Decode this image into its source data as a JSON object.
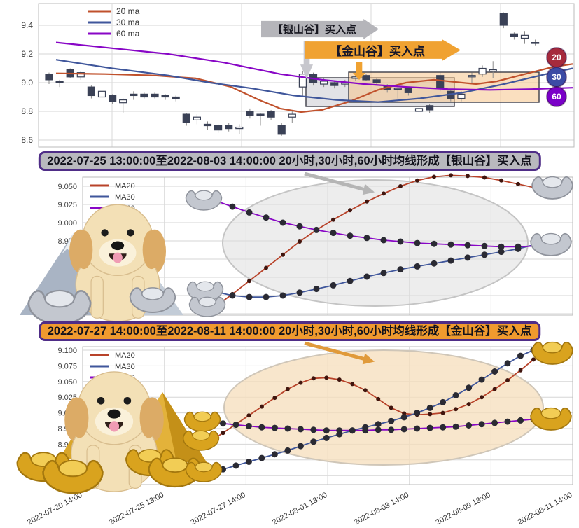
{
  "annotations": {
    "silver_buy_label": "【银山谷】买入点",
    "gold_buy_label": "【金山谷】买入点"
  },
  "titles": {
    "silver": "2022-07-25 13:00:00至2022-08-03 14:00:00 20小时,30小时,60小时均线形成【银山谷】买入点",
    "gold": "2022-07-27 14:00:00至2022-08-11 14:00:00 20小时,30小时,60小时均线形成【金山谷】买入点"
  },
  "colors": {
    "ma20": "#c0512c",
    "ma30": "#3f569b",
    "ma60": "#8806c6",
    "candle": "#3a4156",
    "silver_banner": "#b9b9be",
    "gold_banner": "#f09a2e",
    "banner_border": "#4f2d87"
  },
  "chart_data": [
    {
      "id": "kline",
      "type": "candlestick",
      "legend": [
        {
          "label": "20 ma",
          "color": "#c0512c"
        },
        {
          "label": "30 ma",
          "color": "#3f569b"
        },
        {
          "label": "60 ma",
          "color": "#8806c6"
        }
      ],
      "y_ticks": [
        9.4,
        9.2,
        9.0,
        8.8,
        8.6
      ],
      "badges": [
        {
          "label": "20",
          "color": "#a62a3c"
        },
        {
          "label": "30",
          "color": "#3c4ba5"
        },
        {
          "label": "60",
          "color": "#7a00c8"
        }
      ],
      "candles": [
        [
          9.06,
          9.02,
          8.99,
          9.07
        ],
        [
          9.01,
          9.0,
          8.97,
          9.02
        ],
        [
          9.09,
          9.04,
          9.03,
          9.1
        ],
        [
          9.04,
          9.07,
          9.02,
          9.08
        ],
        [
          8.97,
          8.91,
          8.89,
          8.98
        ],
        [
          8.9,
          8.94,
          8.88,
          8.96
        ],
        [
          8.91,
          8.87,
          8.85,
          8.92
        ],
        [
          8.86,
          8.88,
          8.79,
          8.89
        ],
        [
          8.92,
          8.91,
          8.88,
          8.94
        ],
        [
          8.92,
          8.9,
          8.89,
          8.93
        ],
        [
          8.92,
          8.9,
          8.89,
          8.93
        ],
        [
          8.91,
          8.9,
          8.88,
          8.92
        ],
        [
          8.9,
          8.89,
          8.87,
          8.91
        ],
        [
          8.78,
          8.72,
          8.7,
          8.79
        ],
        [
          8.74,
          8.76,
          8.71,
          8.78
        ],
        [
          8.71,
          8.7,
          8.67,
          8.73
        ],
        [
          8.7,
          8.67,
          8.65,
          8.71
        ],
        [
          8.7,
          8.68,
          8.66,
          8.72
        ],
        [
          8.68,
          8.69,
          8.64,
          8.71
        ],
        [
          8.8,
          8.77,
          8.75,
          8.82
        ],
        [
          8.78,
          8.77,
          8.7,
          8.79
        ],
        [
          8.8,
          8.76,
          8.74,
          8.81
        ],
        [
          8.7,
          8.64,
          8.63,
          8.72
        ],
        [
          8.76,
          8.78,
          8.72,
          8.8
        ],
        [
          8.97,
          9.06,
          8.9,
          9.08
        ],
        [
          9.06,
          9.0,
          8.98,
          9.07
        ],
        [
          8.99,
          9.01,
          8.97,
          9.03
        ],
        [
          9.0,
          8.98,
          8.96,
          9.01
        ],
        [
          8.99,
          9.0,
          8.97,
          9.02
        ],
        [
          9.03,
          9.04,
          9.01,
          9.06
        ],
        [
          9.05,
          9.02,
          9.01,
          9.06
        ],
        [
          9.02,
          9.0,
          8.98,
          9.03
        ],
        [
          8.98,
          8.95,
          8.93,
          8.99
        ],
        [
          8.96,
          8.96,
          8.89,
          8.97
        ],
        [
          8.96,
          8.93,
          8.91,
          8.97
        ],
        [
          8.8,
          8.82,
          8.78,
          8.84
        ],
        [
          8.84,
          8.81,
          8.79,
          8.85
        ],
        [
          9.05,
          8.96,
          8.94,
          9.07
        ],
        [
          8.94,
          8.89,
          8.87,
          8.95
        ],
        [
          8.89,
          8.92,
          8.87,
          8.94
        ],
        [
          9.04,
          9.05,
          9.0,
          9.07
        ],
        [
          9.06,
          9.1,
          9.04,
          9.12
        ],
        [
          9.08,
          9.09,
          9.03,
          9.15
        ],
        [
          9.48,
          9.4,
          9.38,
          9.49
        ],
        [
          9.34,
          9.32,
          9.3,
          9.35
        ],
        [
          9.31,
          9.33,
          9.27,
          9.36
        ],
        [
          9.28,
          9.28,
          9.26,
          9.3
        ]
      ],
      "ma_series": [
        {
          "name": "20 ma",
          "color": "#c0512c",
          "points": [
            [
              80,
              9.065
            ],
            [
              150,
              9.06
            ],
            [
              220,
              9.05
            ],
            [
              280,
              9.03
            ],
            [
              330,
              8.97
            ],
            [
              370,
              8.88
            ],
            [
              400,
              8.82
            ],
            [
              430,
              8.795
            ],
            [
              460,
              8.81
            ],
            [
              500,
              8.87
            ],
            [
              540,
              8.95
            ],
            [
              580,
              9.0
            ],
            [
              620,
              9.02
            ],
            [
              650,
              9.005
            ],
            [
              680,
              8.99
            ],
            [
              710,
              9.01
            ],
            [
              750,
              9.06
            ],
            [
              790,
              9.11
            ],
            [
              818,
              9.13
            ]
          ]
        },
        {
          "name": "30 ma",
          "color": "#3f569b",
          "points": [
            [
              80,
              9.16
            ],
            [
              160,
              9.1
            ],
            [
              240,
              9.05
            ],
            [
              300,
              9.0
            ],
            [
              360,
              8.96
            ],
            [
              420,
              8.91
            ],
            [
              480,
              8.88
            ],
            [
              540,
              8.865
            ],
            [
              600,
              8.89
            ],
            [
              660,
              8.93
            ],
            [
              720,
              8.99
            ],
            [
              780,
              9.06
            ],
            [
              818,
              9.1
            ]
          ]
        },
        {
          "name": "60 ma",
          "color": "#8806c6",
          "points": [
            [
              80,
              9.28
            ],
            [
              160,
              9.24
            ],
            [
              240,
              9.2
            ],
            [
              320,
              9.14
            ],
            [
              400,
              9.06
            ],
            [
              460,
              9.02
            ],
            [
              520,
              8.99
            ],
            [
              580,
              8.97
            ],
            [
              640,
              8.955
            ],
            [
              700,
              8.95
            ],
            [
              760,
              8.955
            ],
            [
              818,
              8.965
            ]
          ]
        }
      ]
    },
    {
      "id": "silver-valley",
      "type": "line",
      "legend": [
        {
          "label": "MA20",
          "color": "#b8432a"
        },
        {
          "label": "MA30",
          "color": "#3f569b"
        },
        {
          "label": "MA60",
          "color": "#8806c6"
        }
      ],
      "y_ticks": [
        9.05,
        9.025,
        9.0,
        8.975,
        8.95,
        8.925,
        8.9,
        8.875
      ],
      "series": [
        {
          "name": "MA20",
          "values": [
            8.885,
            8.902,
            8.92,
            8.938,
            8.956,
            8.974,
            8.99,
            9.004,
            9.017,
            9.029,
            9.04,
            9.05,
            9.058,
            9.063,
            9.065,
            9.064,
            9.062,
            9.058,
            9.053,
            9.048
          ]
        },
        {
          "name": "MA30",
          "values": [
            8.905,
            8.9,
            8.898,
            8.898,
            8.9,
            8.904,
            8.909,
            8.914,
            8.92,
            8.926,
            8.931,
            8.936,
            8.94,
            8.944,
            8.948,
            8.952,
            8.956,
            8.96,
            8.964,
            8.97
          ]
        },
        {
          "name": "MA60",
          "values": [
            9.03,
            9.022,
            9.014,
            9.007,
            9.0,
            8.995,
            8.99,
            8.986,
            8.982,
            8.979,
            8.976,
            8.974,
            8.972,
            8.971,
            8.97,
            8.969,
            8.968,
            8.967,
            8.967,
            8.968
          ]
        }
      ]
    },
    {
      "id": "gold-valley",
      "type": "line",
      "legend": [
        {
          "label": "MA20",
          "color": "#b8432a"
        },
        {
          "label": "MA30",
          "color": "#3f569b"
        },
        {
          "label": "MA60",
          "color": "#8806c6"
        }
      ],
      "y_ticks": [
        9.1,
        9.075,
        9.05,
        9.025,
        9.0,
        8.975,
        8.95,
        8.925,
        8.9
      ],
      "x_labels": [
        "2022-07-20 14:00",
        "2022-07-25 13:00",
        "2022-07-27 14:00",
        "2022-08-01 13:00",
        "2022-08-03 14:00",
        "2022-08-09 13:00",
        "2022-08-11 14:00"
      ],
      "series": [
        {
          "name": "MA20",
          "values": [
            8.955,
            8.968,
            8.982,
            8.996,
            9.01,
            9.024,
            9.038,
            9.048,
            9.055,
            9.056,
            9.053,
            9.046,
            9.036,
            9.022,
            9.008,
            8.999,
            8.997,
            8.998,
            9.0,
            9.006,
            9.014,
            9.025,
            9.038,
            9.052,
            9.068,
            9.085
          ]
        },
        {
          "name": "MA30",
          "values": [
            8.905,
            8.91,
            8.916,
            8.922,
            8.928,
            8.934,
            8.94,
            8.947,
            8.954,
            8.96,
            8.966,
            8.972,
            8.977,
            8.982,
            8.987,
            8.993,
            9.0,
            9.008,
            9.017,
            9.028,
            9.04,
            9.053,
            9.066,
            9.079,
            9.091,
            9.1
          ]
        },
        {
          "name": "MA60",
          "values": [
            8.985,
            8.983,
            8.981,
            8.979,
            8.977,
            8.976,
            8.975,
            8.974,
            8.973,
            8.972,
            8.972,
            8.972,
            8.972,
            8.973,
            8.973,
            8.974,
            8.975,
            8.976,
            8.977,
            8.978,
            8.98,
            8.982,
            8.984,
            8.986,
            8.988,
            8.99
          ]
        }
      ]
    }
  ]
}
